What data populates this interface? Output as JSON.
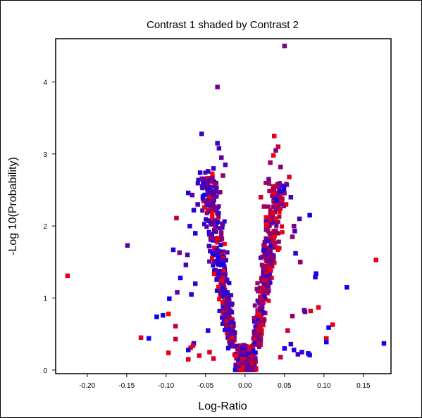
{
  "chart_data": {
    "type": "scatter",
    "title": "Contrast 1 shaded by Contrast 2",
    "xlabel": "Log-Ratio",
    "ylabel": "-Log 10(Probability)",
    "xlim": [
      -0.24,
      0.185
    ],
    "ylim": [
      -0.05,
      4.6
    ],
    "x_ticks": [
      -0.2,
      -0.15,
      -0.1,
      -0.05,
      0.0,
      0.05,
      0.1,
      0.15
    ],
    "x_tick_labels": [
      "-0.20",
      "-0.15",
      "-0.10",
      "-0.05",
      "0.00",
      "0.05",
      "0.10",
      "0.15"
    ],
    "y_ticks": [
      0,
      1,
      2,
      3,
      4
    ],
    "y_tick_labels": [
      "0",
      "1",
      "2",
      "3",
      "4"
    ],
    "grid": false,
    "legend": "none",
    "color_scale": {
      "low": "#0000ff",
      "high": "#ff0000"
    },
    "points": [
      {
        "x": 0.05,
        "y": 4.5,
        "shade": 0.5
      },
      {
        "x": -0.035,
        "y": 3.93,
        "shade": 0.45
      },
      {
        "x": -0.055,
        "y": 3.28,
        "shade": 0.25
      },
      {
        "x": 0.037,
        "y": 3.25,
        "shade": 0.9
      },
      {
        "x": -0.035,
        "y": 3.15,
        "shade": 0.2
      },
      {
        "x": 0.042,
        "y": 3.1,
        "shade": 0.8
      },
      {
        "x": 0.039,
        "y": 3.05,
        "shade": 0.5
      },
      {
        "x": -0.033,
        "y": 3.08,
        "shade": 0.3
      },
      {
        "x": -0.03,
        "y": 2.95,
        "shade": 0.4
      },
      {
        "x": 0.036,
        "y": 2.98,
        "shade": 0.95
      },
      {
        "x": 0.032,
        "y": 2.88,
        "shade": 0.6
      },
      {
        "x": -0.025,
        "y": 2.85,
        "shade": 0.3
      },
      {
        "x": 0.045,
        "y": 2.82,
        "shade": 0.55
      },
      {
        "x": -0.047,
        "y": 2.76,
        "shade": 0.2
      },
      {
        "x": -0.04,
        "y": 2.8,
        "shade": 0.25
      },
      {
        "x": -0.057,
        "y": 2.74,
        "shade": 0.15
      },
      {
        "x": 0.056,
        "y": 2.68,
        "shade": 0.9
      },
      {
        "x": -0.028,
        "y": 2.7,
        "shade": 0.6
      },
      {
        "x": 0.03,
        "y": 2.65,
        "shade": 0.45
      },
      {
        "x": -0.05,
        "y": 2.6,
        "shade": 0.3
      },
      {
        "x": 0.041,
        "y": 2.58,
        "shade": 0.7
      },
      {
        "x": -0.072,
        "y": 2.46,
        "shade": 0.1
      },
      {
        "x": -0.067,
        "y": 2.43,
        "shade": 0.35
      },
      {
        "x": 0.058,
        "y": 2.4,
        "shade": 0.3
      },
      {
        "x": -0.053,
        "y": 2.38,
        "shade": 0.5
      },
      {
        "x": 0.02,
        "y": 2.4,
        "shade": 0.85
      },
      {
        "x": 0.052,
        "y": 2.3,
        "shade": 0.9
      },
      {
        "x": -0.06,
        "y": 2.3,
        "shade": 0.3
      },
      {
        "x": 0.024,
        "y": 2.27,
        "shade": 0.65
      },
      {
        "x": -0.065,
        "y": 2.22,
        "shade": 0.2
      },
      {
        "x": -0.087,
        "y": 2.11,
        "shade": 0.75
      },
      {
        "x": 0.082,
        "y": 2.15,
        "shade": 0.05
      },
      {
        "x": 0.069,
        "y": 2.1,
        "shade": 0.3
      },
      {
        "x": 0.062,
        "y": 2.0,
        "shade": 0.5
      },
      {
        "x": -0.07,
        "y": 2.0,
        "shade": 0.2
      },
      {
        "x": 0.027,
        "y": 2.0,
        "shade": 0.9
      },
      {
        "x": 0.063,
        "y": 1.93,
        "shade": 0.25
      },
      {
        "x": -0.063,
        "y": 1.9,
        "shade": 0.1
      },
      {
        "x": 0.06,
        "y": 1.85,
        "shade": 0.6
      },
      {
        "x": -0.149,
        "y": 1.73,
        "shade": 0.35
      },
      {
        "x": -0.091,
        "y": 1.67,
        "shade": 0.1
      },
      {
        "x": -0.083,
        "y": 1.63,
        "shade": 0.5
      },
      {
        "x": -0.073,
        "y": 1.6,
        "shade": 0.3
      },
      {
        "x": 0.064,
        "y": 1.62,
        "shade": 0.2
      },
      {
        "x": 0.166,
        "y": 1.53,
        "shade": 0.9
      },
      {
        "x": -0.075,
        "y": 1.46,
        "shade": 0.25
      },
      {
        "x": 0.07,
        "y": 1.5,
        "shade": 0.55
      },
      {
        "x": -0.225,
        "y": 1.31,
        "shade": 0.85
      },
      {
        "x": -0.082,
        "y": 1.28,
        "shade": 0.1
      },
      {
        "x": 0.09,
        "y": 1.34,
        "shade": 0.05
      },
      {
        "x": 0.089,
        "y": 1.29,
        "shade": 0.15
      },
      {
        "x": -0.063,
        "y": 1.2,
        "shade": 0.2
      },
      {
        "x": 0.129,
        "y": 1.15,
        "shade": 0.05
      },
      {
        "x": -0.086,
        "y": 1.08,
        "shade": 0.4
      },
      {
        "x": -0.068,
        "y": 1.05,
        "shade": 0.15
      },
      {
        "x": -0.096,
        "y": 0.99,
        "shade": 0.05
      },
      {
        "x": 0.093,
        "y": 0.87,
        "shade": 0.95
      },
      {
        "x": 0.075,
        "y": 0.83,
        "shade": 0.3
      },
      {
        "x": 0.076,
        "y": 0.81,
        "shade": 0.4
      },
      {
        "x": -0.097,
        "y": 0.78,
        "shade": 0.95
      },
      {
        "x": 0.083,
        "y": 0.82,
        "shade": 0.85
      },
      {
        "x": -0.104,
        "y": 0.76,
        "shade": 0.1
      },
      {
        "x": -0.112,
        "y": 0.74,
        "shade": 0.05
      },
      {
        "x": 0.111,
        "y": 0.63,
        "shade": 0.95
      },
      {
        "x": 0.106,
        "y": 0.59,
        "shade": 0.05
      },
      {
        "x": -0.088,
        "y": 0.61,
        "shade": 0.75
      },
      {
        "x": -0.132,
        "y": 0.45,
        "shade": 0.85
      },
      {
        "x": -0.122,
        "y": 0.44,
        "shade": 0.05
      },
      {
        "x": -0.088,
        "y": 0.43,
        "shade": 0.8
      },
      {
        "x": 0.103,
        "y": 0.44,
        "shade": 0.9
      },
      {
        "x": 0.103,
        "y": 0.39,
        "shade": 0.1
      },
      {
        "x": 0.176,
        "y": 0.37,
        "shade": 0.05
      },
      {
        "x": -0.065,
        "y": 0.37,
        "shade": 0.1
      },
      {
        "x": -0.066,
        "y": 0.34,
        "shade": 0.85
      },
      {
        "x": -0.069,
        "y": 0.31,
        "shade": 0.9
      },
      {
        "x": -0.072,
        "y": 0.28,
        "shade": 0.15
      },
      {
        "x": -0.097,
        "y": 0.24,
        "shade": 0.95
      },
      {
        "x": -0.072,
        "y": 0.15,
        "shade": 0.9
      },
      {
        "x": 0.08,
        "y": 0.23,
        "shade": 0.05
      },
      {
        "x": 0.082,
        "y": 0.21,
        "shade": 0.1
      },
      {
        "x": 0.072,
        "y": 0.25,
        "shade": 0.2
      },
      {
        "x": 0.067,
        "y": 0.22,
        "shade": 0.25
      },
      {
        "x": -0.058,
        "y": 0.2,
        "shade": 0.85
      },
      {
        "x": 0.062,
        "y": 0.28,
        "shade": 0.15
      },
      {
        "x": 0.058,
        "y": 0.36,
        "shade": 0.2
      },
      {
        "x": -0.045,
        "y": 0.25,
        "shade": 0.9
      },
      {
        "x": 0.05,
        "y": 0.3,
        "shade": 0.1
      },
      {
        "x": 0.045,
        "y": 0.18,
        "shade": 0.8
      },
      {
        "x": -0.04,
        "y": 0.16,
        "shade": 0.85
      },
      {
        "x": -0.047,
        "y": 0.55,
        "shade": 0.2
      },
      {
        "x": 0.054,
        "y": 0.55,
        "shade": 0.85
      },
      {
        "x": 0.06,
        "y": 0.75,
        "shade": 0.6
      }
    ]
  }
}
